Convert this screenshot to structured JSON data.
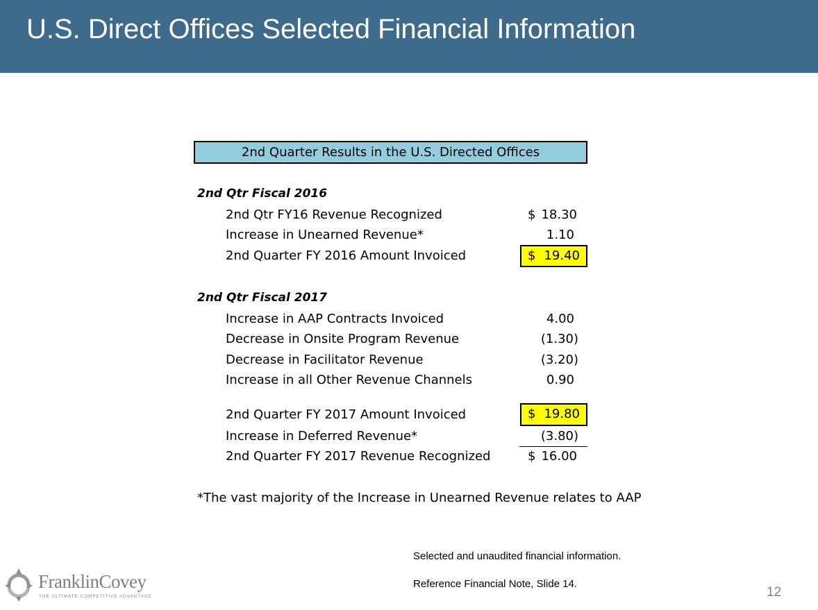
{
  "header": {
    "title": "U.S. Direct Offices Selected Financial Information"
  },
  "table": {
    "banner": "2nd Quarter Results in the U.S. Directed Offices",
    "fy2016": {
      "heading": "2nd Qtr Fiscal 2016",
      "rows": [
        {
          "label": "2nd Qtr FY16 Revenue Recognized",
          "currency": "$",
          "value": "18.30"
        },
        {
          "label": "Increase in Unearned Revenue*",
          "value": "1.10"
        },
        {
          "label": "2nd Quarter FY 2016 Amount Invoiced",
          "currency": "$",
          "value": "19.40",
          "highlight": "#ffff00"
        }
      ]
    },
    "fy2017": {
      "heading": "2nd Qtr Fiscal 2017",
      "rows": [
        {
          "label": "Increase in AAP Contracts Invoiced",
          "value": "4.00"
        },
        {
          "label": "Decrease in Onsite Program Revenue",
          "value": "(1.30)"
        },
        {
          "label": "Decrease in Facilitator Revenue",
          "value": "(3.20)"
        },
        {
          "label": "Increase in all Other Revenue Channels",
          "value": "0.90"
        }
      ],
      "summary": [
        {
          "label": "2nd Quarter FY 2017 Amount Invoiced",
          "currency": "$",
          "value": "19.80",
          "highlight": "#ffff00"
        },
        {
          "label": "Increase in Deferred Revenue*",
          "value": "(3.80)"
        },
        {
          "label": "2nd Quarter FY 2017 Revenue Recognized",
          "currency": "$",
          "value": "16.00"
        }
      ]
    },
    "footnote": "*The vast majority of the Increase in Unearned Revenue relates to AAP"
  },
  "notes": {
    "line1": "Selected and unaudited financial information.",
    "line2": "Reference Financial Note, Slide 14."
  },
  "logo": {
    "name": "FranklinCovey",
    "tagline": "THE ULTIMATE COMPETITIVE ADVANTAGE"
  },
  "page_number": "12",
  "colors": {
    "header": "#3e6b8c",
    "banner": "#93cddd",
    "highlight": "#ffff00",
    "page_number": "#7f7f7f"
  }
}
